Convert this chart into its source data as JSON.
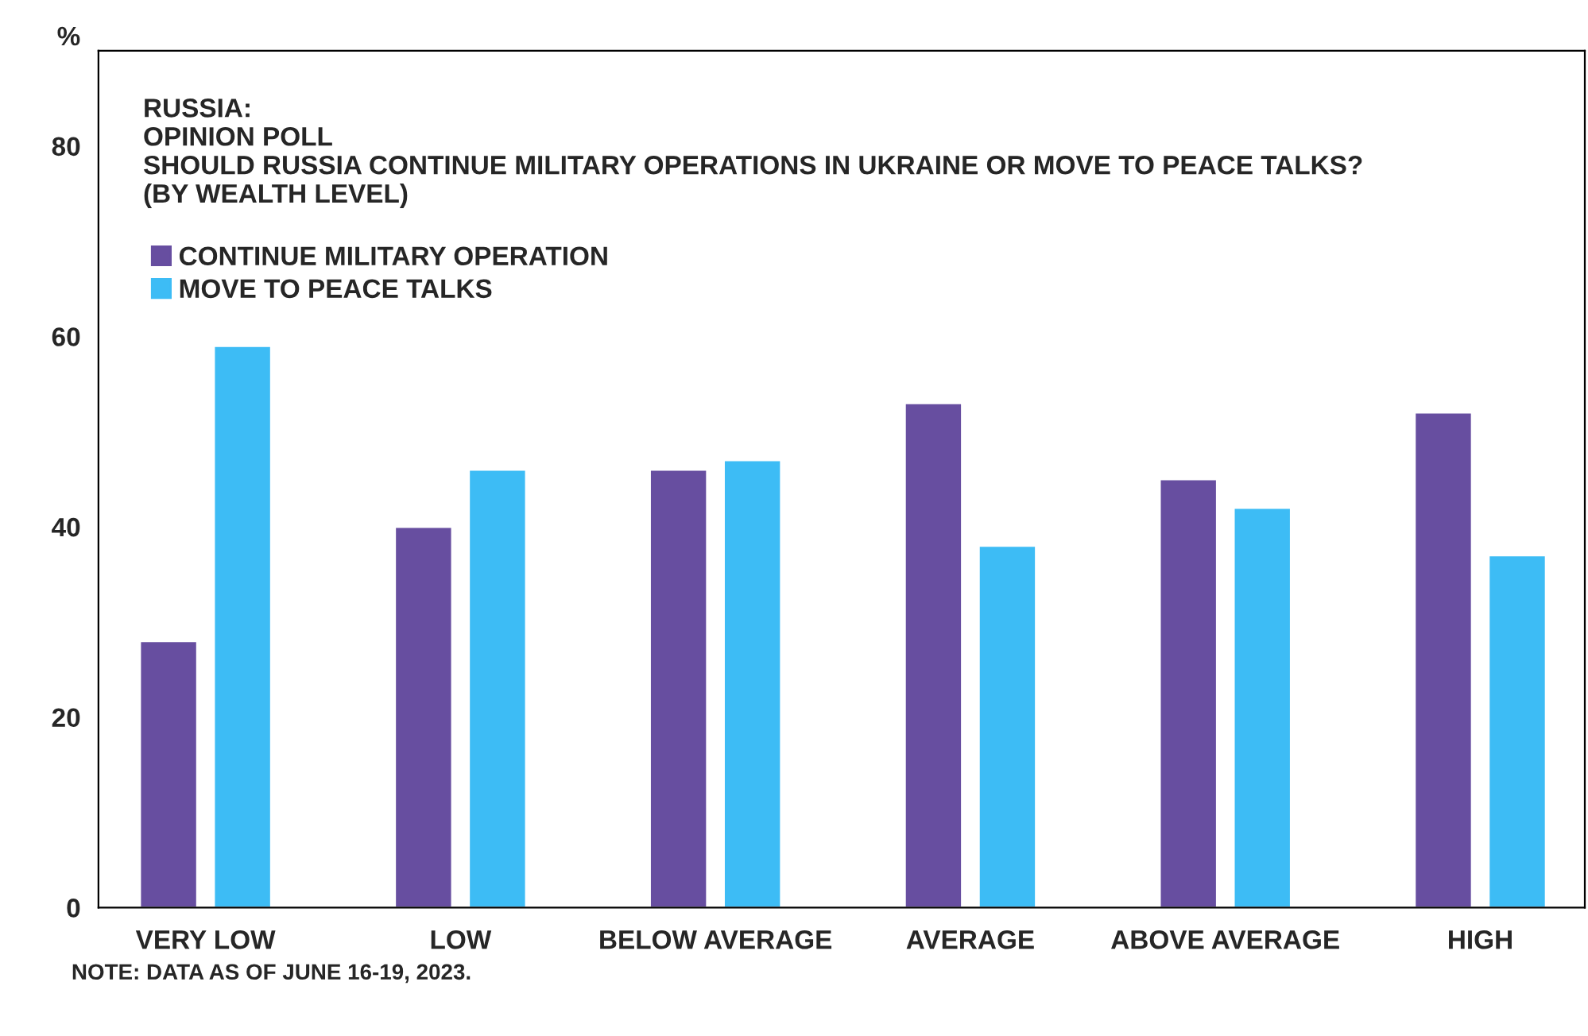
{
  "chart_data": {
    "type": "bar",
    "title": "RUSSIA:\nOPINION POLL\nSHOULD RUSSIA CONTINUE MILITARY OPERATIONS IN UKRAINE OR MOVE TO PEACE TALKS?\n(BY WEALTH LEVEL)",
    "ylabel": "%",
    "categories": [
      "VERY LOW",
      "LOW",
      "BELOW AVERAGE",
      "AVERAGE",
      "ABOVE AVERAGE",
      "HIGH"
    ],
    "series": [
      {
        "name": "CONTINUE MILITARY OPERATION",
        "color": "#674ea0",
        "values": [
          28,
          40,
          46,
          53,
          45,
          52
        ]
      },
      {
        "name": "MOVE TO PEACE TALKS",
        "color": "#3dbcf5",
        "values": [
          59,
          46,
          47,
          38,
          42,
          37
        ]
      }
    ],
    "ylim": [
      0,
      90
    ],
    "yticks": [
      0,
      20,
      40,
      60,
      80
    ],
    "grid": false,
    "legend": "top left",
    "annotations": [
      "NOTE: DATA AS OF JUNE 16-19, 2023."
    ]
  }
}
